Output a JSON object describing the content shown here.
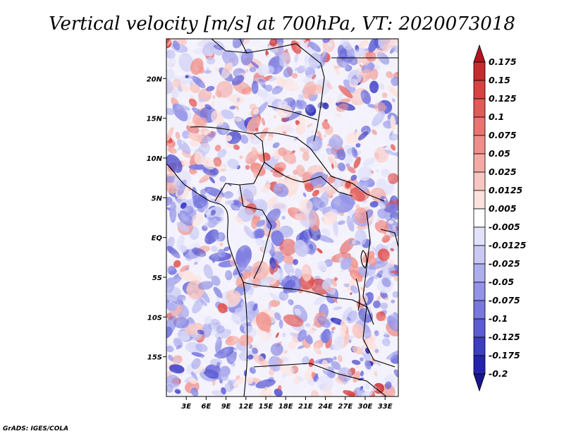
{
  "chart_data": {
    "type": "heatmap",
    "title": "Vertical velocity [m/s] at 700hPa, VT: 2020073018",
    "variable": "Vertical velocity",
    "units": "m/s",
    "level": "700hPa",
    "valid_time": "2020073018",
    "x_ticks": [
      "3E",
      "6E",
      "9E",
      "12E",
      "15E",
      "18E",
      "21E",
      "24E",
      "27E",
      "30E",
      "33E"
    ],
    "y_ticks": [
      "20N",
      "15N",
      "10N",
      "5N",
      "EQ",
      "5S",
      "10S",
      "15S"
    ],
    "x_tick_values": [
      3,
      6,
      9,
      12,
      15,
      18,
      21,
      24,
      27,
      30,
      33
    ],
    "y_tick_values": [
      20,
      15,
      10,
      5,
      0,
      -5,
      -10,
      -15
    ],
    "xlim": [
      0,
      35
    ],
    "ylim": [
      -20,
      25
    ],
    "colorbar_levels": [
      "0.175",
      "0.15",
      "0.125",
      "0.1",
      "0.075",
      "0.05",
      "0.025",
      "0.0125",
      "0.005",
      "-0.005",
      "-0.0125",
      "-0.025",
      "-0.05",
      "-0.075",
      "-0.1",
      "-0.125",
      "-0.175",
      "-0.2"
    ],
    "colorbar_colors": [
      "#b4141e",
      "#c82a2e",
      "#dc4040",
      "#e35a57",
      "#ea7570",
      "#f08f89",
      "#f4aaa4",
      "#f8c6c1",
      "#fce2de",
      "#ffffff",
      "#e2e2fa",
      "#c9c9f4",
      "#aeaeee",
      "#9393e7",
      "#7878df",
      "#5c5cd4",
      "#3d3dc6",
      "#2323b0",
      "#16168e"
    ]
  },
  "footer": {
    "credit": "GrADS: IGES/COLA"
  }
}
